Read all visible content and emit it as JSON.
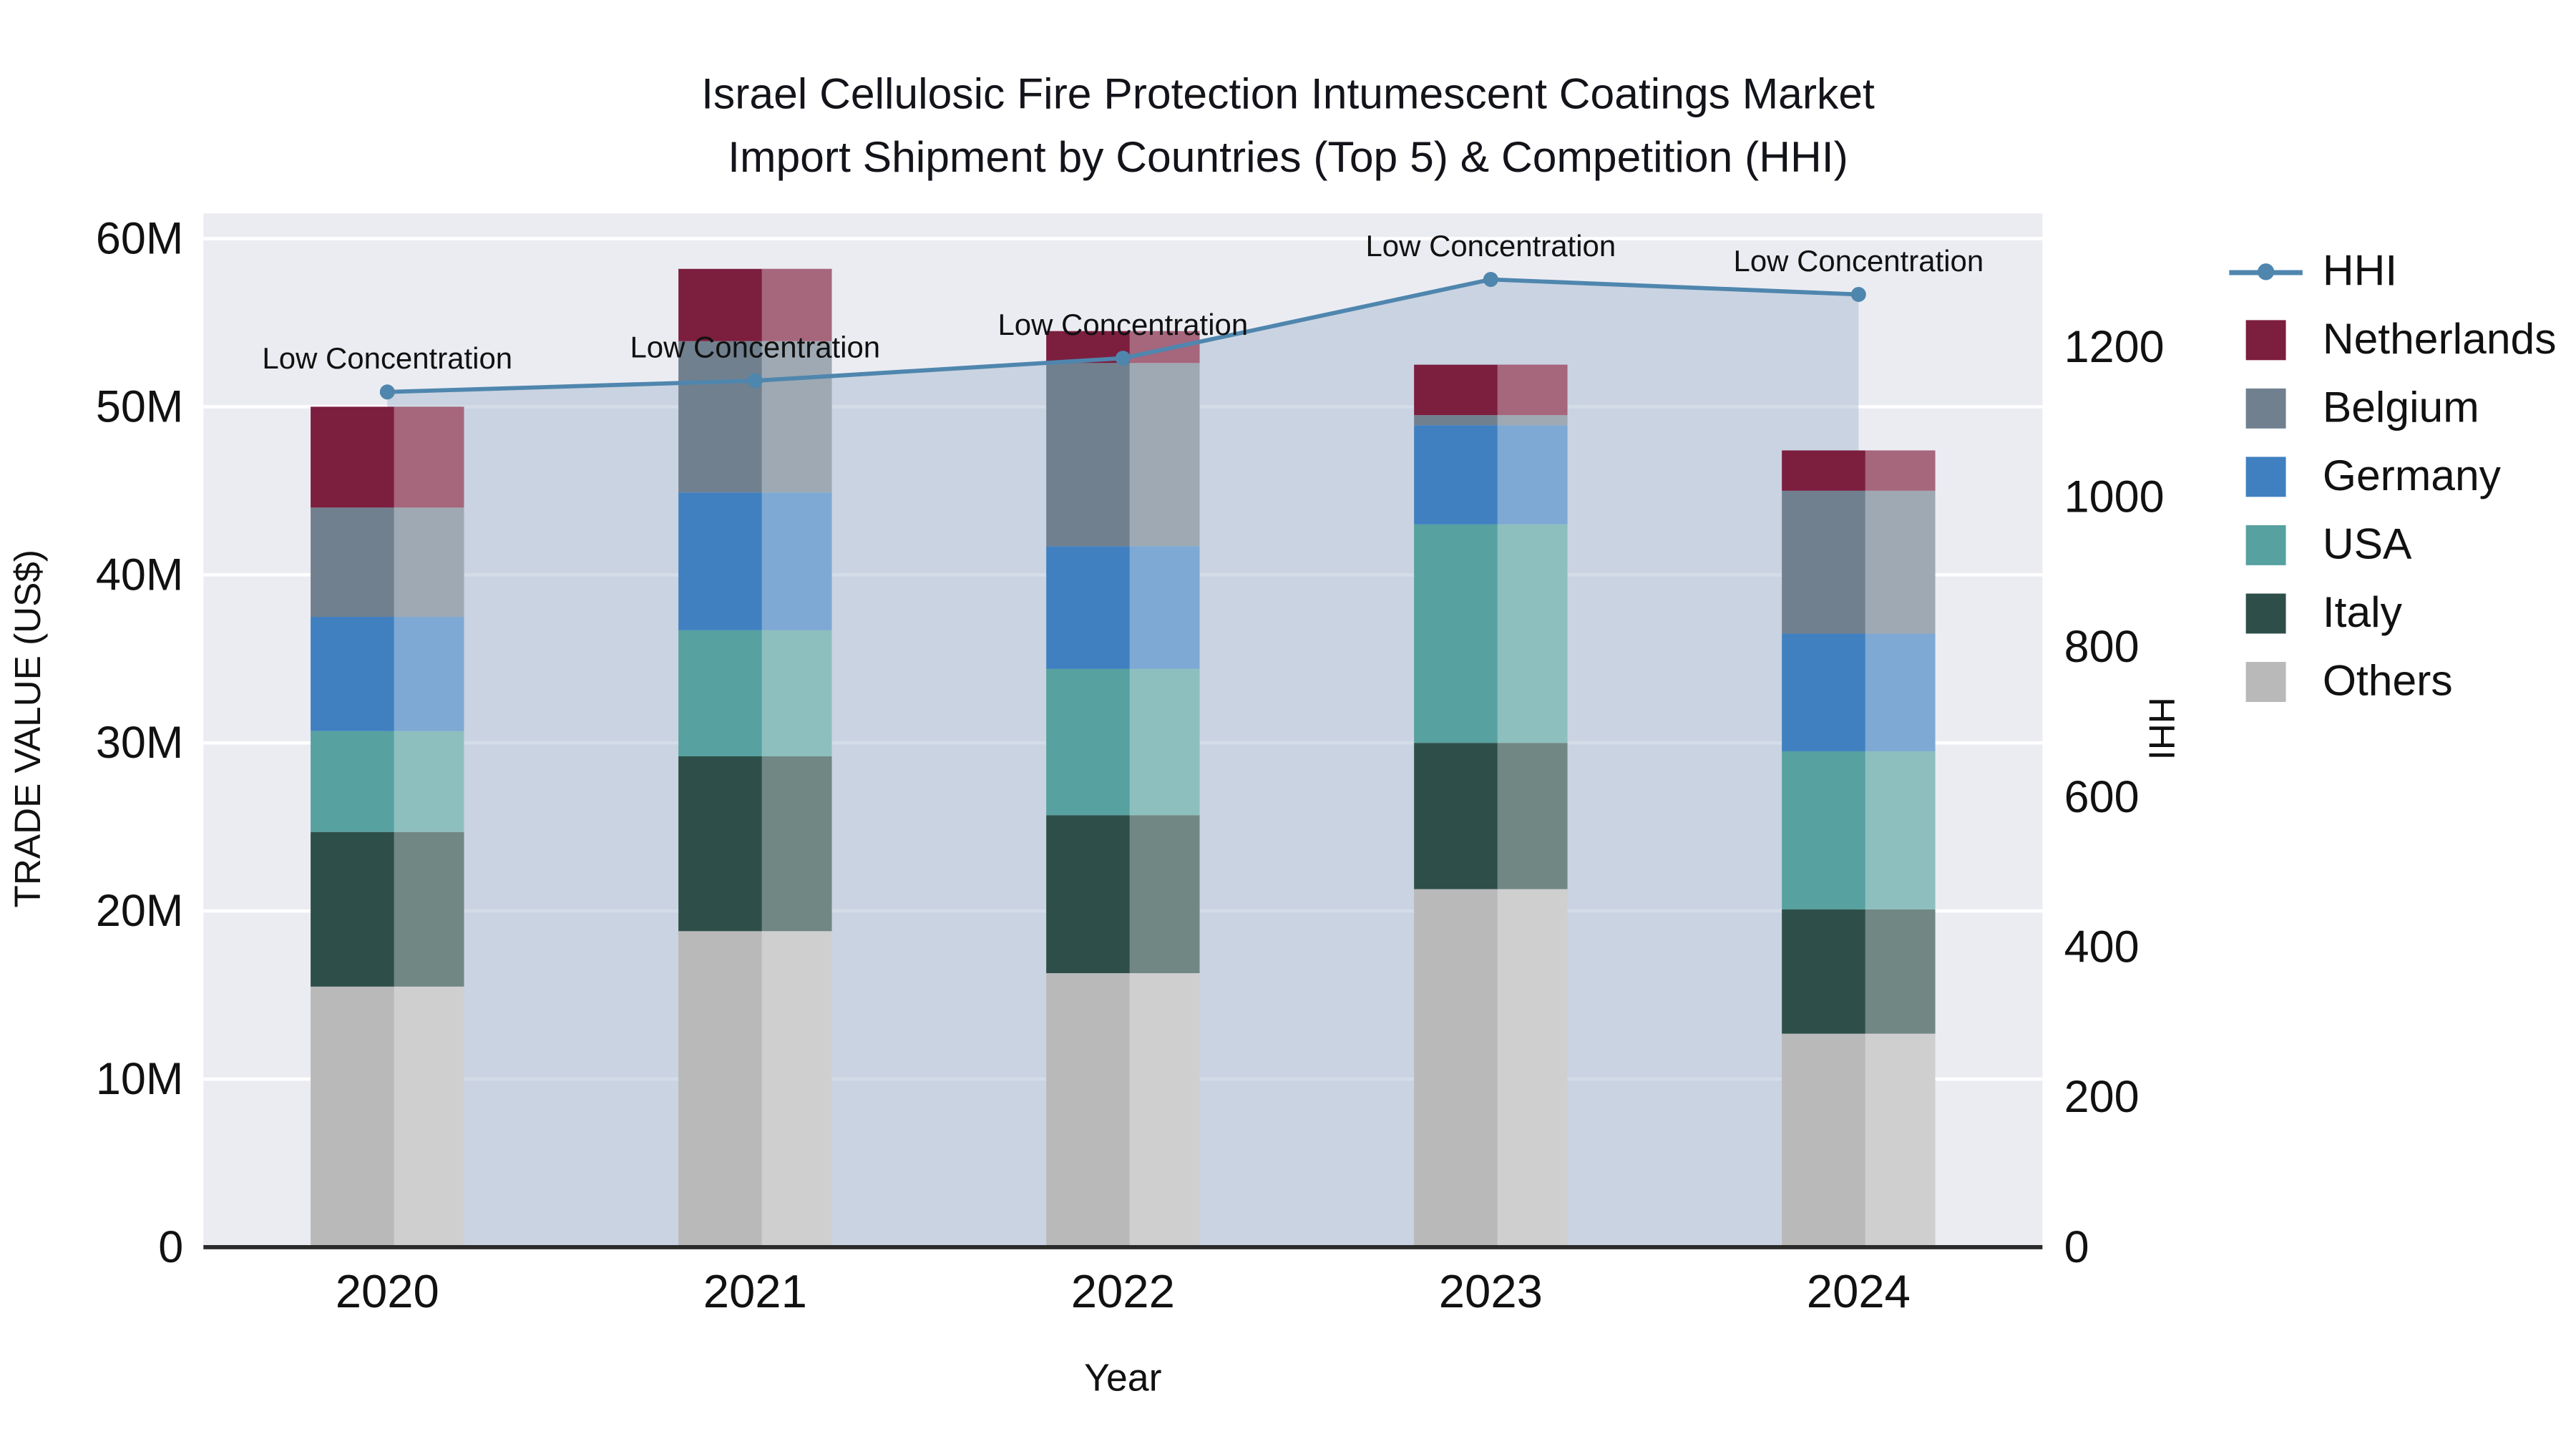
{
  "title": {
    "line1": "Israel Cellulosic Fire Protection Intumescent Coatings Market",
    "line2": "Import Shipment by Countries (Top 5) & Competition (HHI)"
  },
  "chart_data": {
    "type": "bar",
    "stacked": true,
    "title": "Israel Cellulosic Fire Protection Intumescent Coatings Market Import Shipment by Countries (Top 5) & Competition (HHI)",
    "xlabel": "Year",
    "ylabel_left": "TRADE VALUE (US$)",
    "ylabel_right": "HHI",
    "unit": "M US$",
    "categories": [
      "2020",
      "2021",
      "2022",
      "2023",
      "2024"
    ],
    "series": [
      {
        "name": "Others",
        "color": "#b9b9ba",
        "values": [
          15.5,
          18.8,
          16.3,
          21.3,
          12.7
        ]
      },
      {
        "name": "Italy",
        "color": "#2e4f49",
        "values": [
          9.2,
          10.4,
          9.4,
          8.7,
          7.4
        ]
      },
      {
        "name": "USA",
        "color": "#57a1a0",
        "values": [
          6.0,
          7.5,
          8.7,
          13.0,
          9.4
        ]
      },
      {
        "name": "Germany",
        "color": "#4080c0",
        "values": [
          6.8,
          8.2,
          7.3,
          5.9,
          7.0
        ]
      },
      {
        "name": "Belgium",
        "color": "#71808f",
        "values": [
          6.5,
          9.0,
          10.9,
          0.6,
          8.5
        ]
      },
      {
        "name": "Netherlands",
        "color": "#7c1e3e",
        "values": [
          6.0,
          4.3,
          1.9,
          3.0,
          2.4
        ]
      }
    ],
    "totals": [
      50.0,
      58.2,
      54.5,
      52.5,
      47.4
    ],
    "line_overlay": {
      "name": "HHI",
      "axis": "right",
      "color": "#4f86ae",
      "area_fill": "#aebfd4",
      "area_opacity": 0.55,
      "values": [
        1140,
        1155,
        1185,
        1290,
        1270
      ]
    },
    "annotations": [
      "Low Concentration",
      "Low Concentration",
      "Low Concentration",
      "Low Concentration",
      "Low Concentration"
    ],
    "axes": {
      "left": {
        "ticks": [
          "0",
          "10M",
          "20M",
          "30M",
          "40M",
          "50M",
          "60M"
        ],
        "tick_values": [
          0,
          10,
          20,
          30,
          40,
          50,
          60
        ],
        "max": 61.5
      },
      "right": {
        "ticks": [
          "0",
          "200",
          "400",
          "600",
          "800",
          "1000",
          "1200"
        ],
        "tick_values": [
          0,
          200,
          400,
          600,
          800,
          1000,
          1200
        ],
        "max": 1378
      }
    },
    "legend": [
      "HHI",
      "Netherlands",
      "Belgium",
      "Germany",
      "USA",
      "Italy",
      "Others"
    ],
    "colors": {
      "plot_bg": "#ebecf2",
      "grid": "#ffffff",
      "axis_line": "#2b2b2b",
      "text": "#111111"
    }
  }
}
